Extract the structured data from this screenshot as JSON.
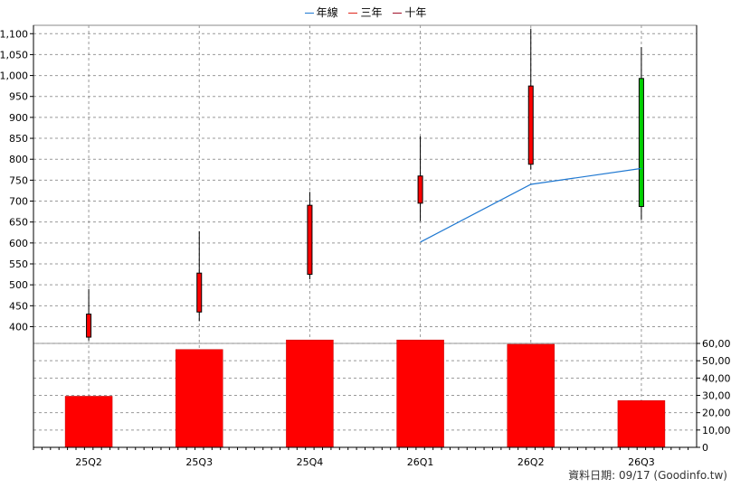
{
  "legend": [
    {
      "label": "年線",
      "color": "#1f78d1"
    },
    {
      "label": "三年",
      "color": "#e0261c"
    },
    {
      "label": "十年",
      "color": "#a0102a"
    }
  ],
  "source_label": "資料日期: 09/17  (Goodinfo.tw)",
  "chart_data": [
    {
      "type": "candlestick",
      "categories": [
        "25Q2",
        "25Q3",
        "25Q4",
        "26Q1",
        "26Q2",
        "26Q3"
      ],
      "ylim": [
        360,
        1120
      ],
      "y_ticks": [
        "400",
        "450",
        "500",
        "550",
        "600",
        "650",
        "700",
        "750",
        "800",
        "850",
        "900",
        "950",
        "1,000",
        "1,050",
        "1,100"
      ],
      "y_tick_values": [
        400,
        450,
        500,
        550,
        600,
        650,
        700,
        750,
        800,
        850,
        900,
        950,
        1000,
        1050,
        1100
      ],
      "grid": true,
      "candles": [
        {
          "open": 375,
          "high": 490,
          "low": 367,
          "close": 430,
          "color": "#ff0000"
        },
        {
          "open": 435,
          "high": 628,
          "low": 413,
          "close": 528,
          "color": "#ff0000"
        },
        {
          "open": 525,
          "high": 722,
          "low": 513,
          "close": 690,
          "color": "#ff0000"
        },
        {
          "open": 695,
          "high": 855,
          "low": 652,
          "close": 760,
          "color": "#ff0000"
        },
        {
          "open": 788,
          "high": 1112,
          "low": 775,
          "close": 975,
          "color": "#ff0000"
        },
        {
          "open": 993,
          "high": 1068,
          "low": 655,
          "close": 687,
          "color": "#00d000"
        }
      ],
      "annual_line": {
        "name": "年線",
        "color": "#1f78d1",
        "points": [
          {
            "category": "26Q1",
            "value": 602
          },
          {
            "category": "26Q2",
            "value": 740
          },
          {
            "category": "26Q3",
            "value": 778
          }
        ]
      }
    },
    {
      "type": "bar",
      "categories": [
        "25Q2",
        "25Q3",
        "25Q4",
        "26Q1",
        "26Q2",
        "26Q3"
      ],
      "values": [
        29500,
        56500,
        62000,
        62000,
        59500,
        27000
      ],
      "ylim": [
        0,
        60000
      ],
      "y_ticks": [
        "0",
        "10,000",
        "20,000",
        "30,000",
        "40,000",
        "50,000",
        "60,000"
      ],
      "y_tick_values": [
        0,
        10000,
        20000,
        30000,
        40000,
        50000,
        60000
      ],
      "grid": true,
      "color": "#ff0000"
    }
  ]
}
